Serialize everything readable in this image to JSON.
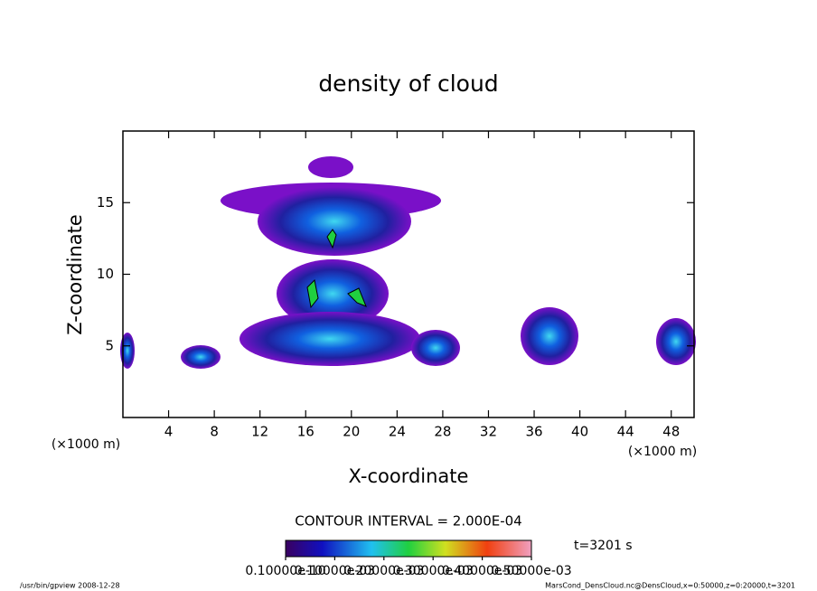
{
  "chart_data": {
    "type": "contour",
    "title": "density of cloud",
    "x_label": "X-coordinate",
    "y_label": "Z-coordinate",
    "x_unit_left": "(×1000 m)",
    "x_unit_right": "(×1000 m)",
    "xlim": [
      0,
      50
    ],
    "ylim": [
      0,
      20
    ],
    "xticks": [
      4,
      8,
      12,
      16,
      20,
      24,
      28,
      32,
      36,
      40,
      44,
      48
    ],
    "yticks": [
      5,
      10,
      15
    ],
    "contour_interval": "CONTOUR INTERVAL = 2.000E-04",
    "time": "t=3201 s",
    "colorbar_lim": [
      0,
      0.0005
    ],
    "colorbar_ticks": [
      {
        "value": 1e-11,
        "label": "0.10000e-10"
      },
      {
        "value": 0.0001,
        "label": "0.10000e-03"
      },
      {
        "value": 0.0002,
        "label": "0.20000e-03"
      },
      {
        "value": 0.0003,
        "label": "0.30000e-03"
      },
      {
        "value": 0.0004,
        "label": "0.40000e-03"
      },
      {
        "value": 0.0005,
        "label": "0.50000e-03"
      }
    ],
    "footer_left": "/usr/bin/gpview  2008-12-28",
    "footer_right": "MarsCond_DensCloud.nc@DensCloud,x=0:50000,z=0:20000,t=3201"
  }
}
